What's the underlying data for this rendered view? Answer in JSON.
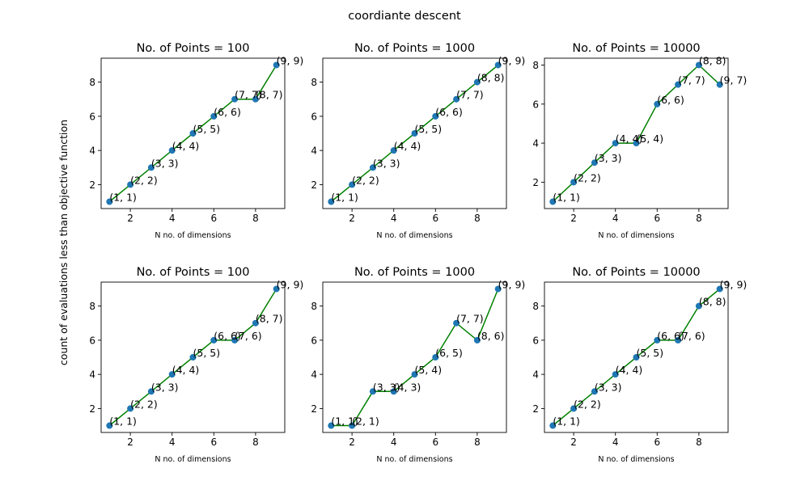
{
  "figure": {
    "suptitle": "coordiante descent",
    "shared_ylabel": "count of evaluations less than objective function"
  },
  "colors": {
    "point": "#1f77b4",
    "line": "#008000",
    "axis": "#000000"
  },
  "chart_data": [
    {
      "type": "line",
      "title": "No. of Points = 100",
      "xlabel": "N no. of dimensions",
      "ylabel": "",
      "grid": false,
      "xlim": [
        0.6,
        9.4
      ],
      "ylim": [
        0.6,
        9.4
      ],
      "xticks": [
        2,
        4,
        6,
        8
      ],
      "yticks": [
        2,
        4,
        6,
        8
      ],
      "x": [
        1,
        2,
        3,
        4,
        5,
        6,
        7,
        8,
        9
      ],
      "y": [
        1,
        2,
        3,
        4,
        5,
        6,
        7,
        7,
        9
      ],
      "point_labels": [
        "(1, 1)",
        "(2, 2)",
        "(3, 3)",
        "(4, 4)",
        "(5, 5)",
        "(6, 6)",
        "(7, 7)",
        "(8, 7)",
        "(9, 9)"
      ]
    },
    {
      "type": "line",
      "title": "No. of Points = 1000",
      "xlabel": "N no. of dimensions",
      "ylabel": "",
      "grid": false,
      "xlim": [
        0.6,
        9.4
      ],
      "ylim": [
        0.6,
        9.4
      ],
      "xticks": [
        2,
        4,
        6,
        8
      ],
      "yticks": [
        2,
        4,
        6,
        8
      ],
      "x": [
        1,
        2,
        3,
        4,
        5,
        6,
        7,
        8,
        9
      ],
      "y": [
        1,
        2,
        3,
        4,
        5,
        6,
        7,
        8,
        9
      ],
      "point_labels": [
        "(1, 1)",
        "(2, 2)",
        "(3, 3)",
        "(4, 4)",
        "(5, 5)",
        "(6, 6)",
        "(7, 7)",
        "(8, 8)",
        "(9, 9)"
      ]
    },
    {
      "type": "line",
      "title": "No. of Points = 10000",
      "xlabel": "N no. of dimensions",
      "ylabel": "",
      "grid": false,
      "xlim": [
        0.6,
        9.4
      ],
      "ylim": [
        0.65,
        8.35
      ],
      "xticks": [
        2,
        4,
        6,
        8
      ],
      "yticks": [
        2,
        4,
        6,
        8
      ],
      "x": [
        1,
        2,
        3,
        4,
        5,
        6,
        7,
        8,
        9
      ],
      "y": [
        1,
        2,
        3,
        4,
        4,
        6,
        7,
        8,
        7
      ],
      "point_labels": [
        "(1, 1)",
        "(2, 2)",
        "(3, 3)",
        "(4, 4)",
        "(5, 4)",
        "(6, 6)",
        "(7, 7)",
        "(8, 8)",
        "(9, 7)"
      ]
    },
    {
      "type": "line",
      "title": "No. of Points = 100",
      "xlabel": "N no. of dimensions",
      "ylabel": "",
      "grid": false,
      "xlim": [
        0.6,
        9.4
      ],
      "ylim": [
        0.6,
        9.4
      ],
      "xticks": [
        2,
        4,
        6,
        8
      ],
      "yticks": [
        2,
        4,
        6,
        8
      ],
      "x": [
        1,
        2,
        3,
        4,
        5,
        6,
        7,
        8,
        9
      ],
      "y": [
        1,
        2,
        3,
        4,
        5,
        6,
        6,
        7,
        9
      ],
      "point_labels": [
        "(1, 1)",
        "(2, 2)",
        "(3, 3)",
        "(4, 4)",
        "(5, 5)",
        "(6, 6)",
        "(7, 6)",
        "(8, 7)",
        "(9, 9)"
      ]
    },
    {
      "type": "line",
      "title": "No. of Points = 1000",
      "xlabel": "N no. of dimensions",
      "ylabel": "",
      "grid": false,
      "xlim": [
        0.6,
        9.4
      ],
      "ylim": [
        0.6,
        9.4
      ],
      "xticks": [
        2,
        4,
        6,
        8
      ],
      "yticks": [
        2,
        4,
        6,
        8
      ],
      "x": [
        1,
        2,
        3,
        4,
        5,
        6,
        7,
        8,
        9
      ],
      "y": [
        1,
        1,
        3,
        3,
        4,
        5,
        7,
        6,
        9
      ],
      "point_labels": [
        "(1, 1)",
        "(2, 1)",
        "(3, 3)",
        "(4, 3)",
        "(5, 4)",
        "(6, 5)",
        "(7, 7)",
        "(8, 6)",
        "(9, 9)"
      ]
    },
    {
      "type": "line",
      "title": "No. of Points = 10000",
      "xlabel": "N no. of dimensions",
      "ylabel": "",
      "grid": false,
      "xlim": [
        0.6,
        9.4
      ],
      "ylim": [
        0.6,
        9.4
      ],
      "xticks": [
        2,
        4,
        6,
        8
      ],
      "yticks": [
        2,
        4,
        6,
        8
      ],
      "x": [
        1,
        2,
        3,
        4,
        5,
        6,
        7,
        8,
        9
      ],
      "y": [
        1,
        2,
        3,
        4,
        5,
        6,
        6,
        8,
        9
      ],
      "point_labels": [
        "(1, 1)",
        "(2, 2)",
        "(3, 3)",
        "(4, 4)",
        "(5, 5)",
        "(6, 6)",
        "(7, 6)",
        "(8, 8)",
        "(9, 9)"
      ]
    }
  ]
}
